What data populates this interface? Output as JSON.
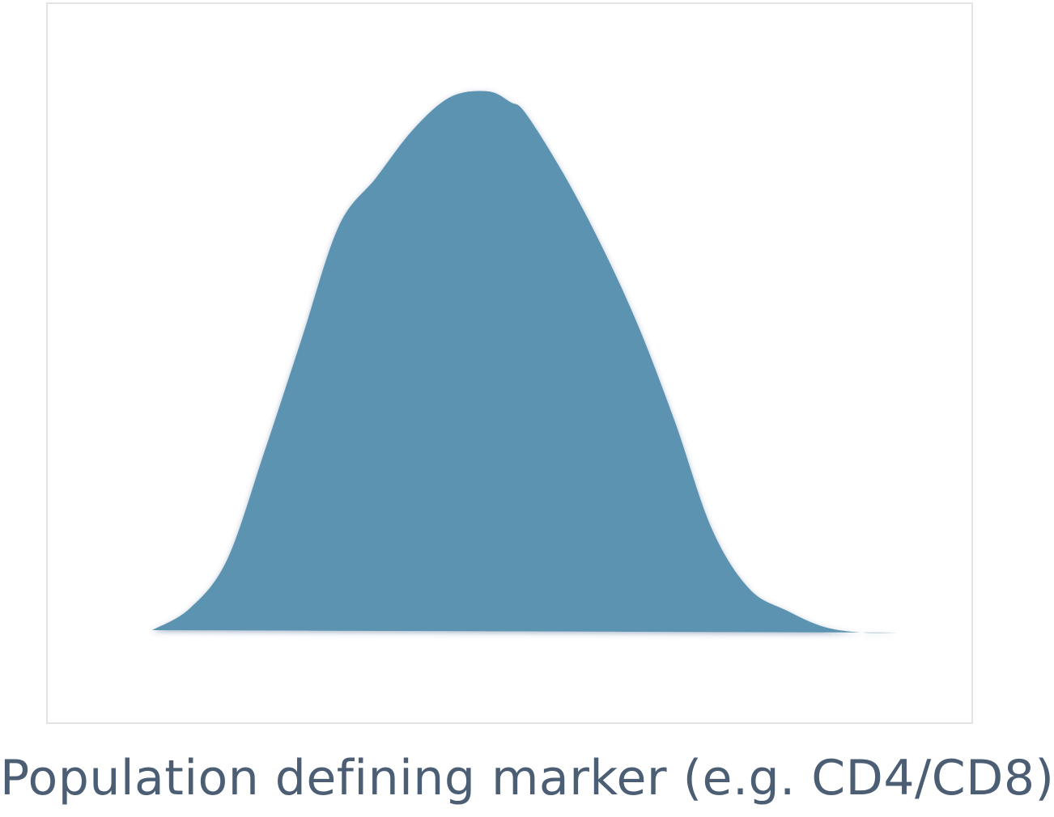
{
  "chart_data": {
    "type": "area",
    "xlabel": "Population defining marker (e.g. CD4/CD8)",
    "ylabel": "",
    "title": "",
    "series": [
      {
        "x": [
          0,
          0.05,
          0.1,
          0.15,
          0.2,
          0.25,
          0.3,
          0.35,
          0.4,
          0.45,
          0.48,
          0.5,
          0.55,
          0.6,
          0.65,
          0.7,
          0.75,
          0.8,
          0.85,
          0.9,
          0.95,
          1.0
        ],
        "y": [
          0.0,
          0.04,
          0.13,
          0.33,
          0.54,
          0.75,
          0.84,
          0.93,
          0.99,
          1.0,
          0.98,
          0.96,
          0.85,
          0.72,
          0.57,
          0.39,
          0.19,
          0.08,
          0.04,
          0.01,
          0.0,
          0.0
        ]
      }
    ],
    "fill_color": "#5b93b1",
    "grid": false,
    "legend": "none"
  },
  "colors": {
    "axis_label": "#4b5e74",
    "frame_border": "#e3e3e3"
  }
}
